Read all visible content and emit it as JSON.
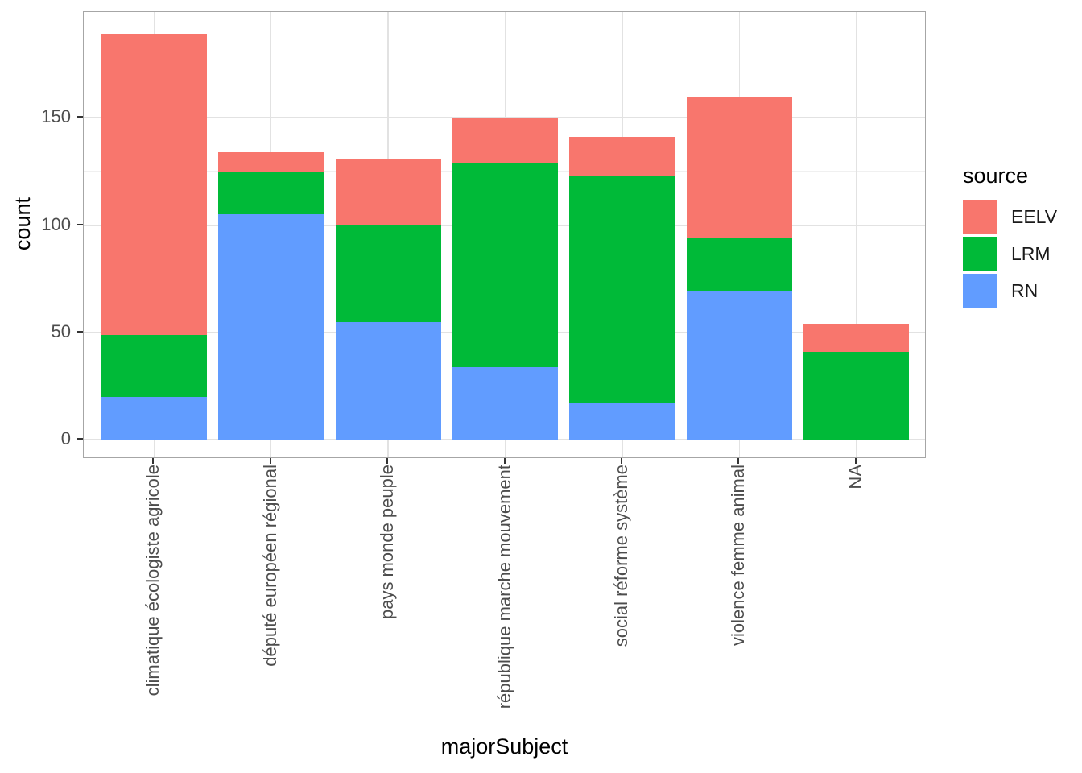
{
  "chart_data": {
    "type": "bar",
    "stacked": true,
    "title": "",
    "xlabel": "majorSubject",
    "ylabel": "count",
    "legend_title": "source",
    "legend_position": "right",
    "grid": true,
    "categories": [
      "climatique écologiste agricole",
      "député européen régional",
      "pays monde peuple",
      "république marche mouvement",
      "social réforme système",
      "violence femme animal",
      "NA"
    ],
    "series": [
      {
        "name": "EELV",
        "color": "#F8766D",
        "values": [
          140,
          9,
          31,
          21,
          18,
          66,
          13
        ]
      },
      {
        "name": "LRM",
        "color": "#00BA38",
        "values": [
          29,
          20,
          45,
          95,
          106,
          25,
          41
        ]
      },
      {
        "name": "RN",
        "color": "#619CFF",
        "values": [
          20,
          105,
          55,
          34,
          17,
          69,
          0
        ]
      }
    ],
    "stack_order_bottom_to_top": [
      "RN",
      "LRM",
      "EELV"
    ],
    "totals": [
      189,
      134,
      131,
      150,
      141,
      160,
      54
    ],
    "y_ticks": [
      0,
      50,
      100,
      150
    ],
    "y_minor_ticks": [
      25,
      75,
      125,
      175
    ],
    "ylim": [
      0,
      190
    ]
  },
  "colors": {
    "background": "#FFFFFF",
    "panel_border": "#A6A6A6",
    "grid_major": "#E2E2E2",
    "grid_minor": "#F0F0F0",
    "tick_mark": "#333333",
    "tick_label": "#4D4D4D",
    "axis_title": "#000000"
  }
}
